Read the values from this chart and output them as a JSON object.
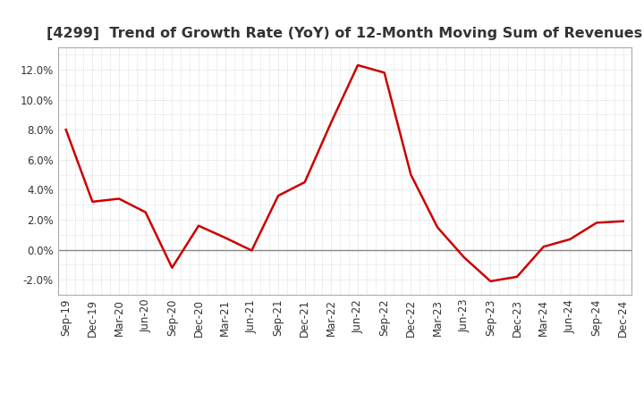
{
  "title": "[4299]  Trend of Growth Rate (YoY) of 12-Month Moving Sum of Revenues",
  "x_labels": [
    "Sep-19",
    "Dec-19",
    "Mar-20",
    "Jun-20",
    "Sep-20",
    "Dec-20",
    "Mar-21",
    "Jun-21",
    "Sep-21",
    "Dec-21",
    "Mar-22",
    "Jun-22",
    "Sep-22",
    "Dec-22",
    "Mar-23",
    "Jun-23",
    "Sep-23",
    "Dec-23",
    "Mar-24",
    "Jun-24",
    "Sep-24",
    "Dec-24"
  ],
  "y_values": [
    8.0,
    3.2,
    3.4,
    2.5,
    -1.2,
    1.6,
    0.8,
    -0.05,
    3.6,
    4.5,
    8.5,
    12.3,
    11.8,
    5.0,
    1.5,
    -0.5,
    -2.1,
    -1.8,
    0.2,
    0.7,
    1.8,
    1.9
  ],
  "line_color": "#cc0000",
  "line_width": 1.8,
  "ylim": [
    -3.0,
    13.5
  ],
  "yticks": [
    -2.0,
    0.0,
    2.0,
    4.0,
    6.0,
    8.0,
    10.0,
    12.0
  ],
  "background_color": "#ffffff",
  "plot_bg_color": "#ffffff",
  "grid_color": "#bbbbbb",
  "title_fontsize": 11.5,
  "tick_fontsize": 8.5,
  "zero_line_color": "#888888"
}
